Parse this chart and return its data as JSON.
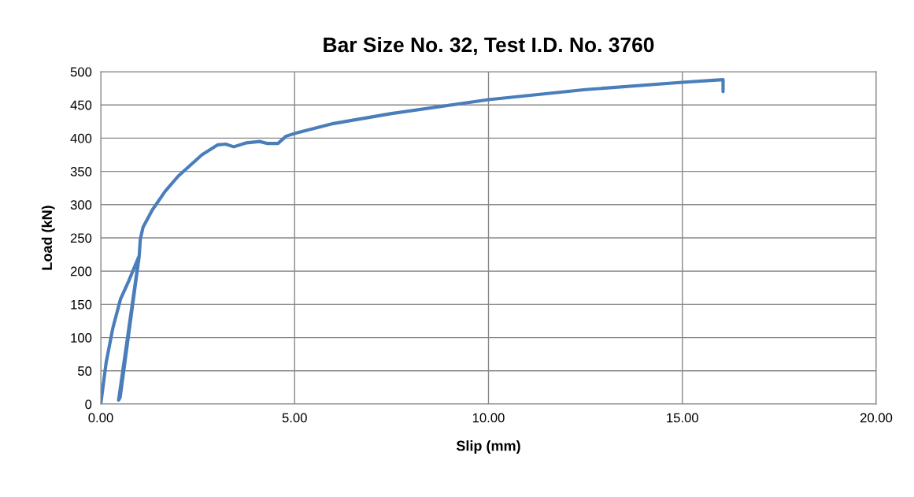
{
  "chart_data": {
    "type": "line",
    "title": "Bar Size No. 32, Test I.D. No. 3760",
    "xlabel": "Slip (mm)",
    "ylabel": "Load (kN)",
    "series": [
      {
        "color": "#4a7ebb",
        "x": [
          0,
          0.14,
          0.31,
          0.51,
          0.72,
          0.99,
          0.46,
          0.5,
          0.99,
          1.02,
          1.09,
          1.33,
          1.66,
          2.0,
          2.61,
          3.02,
          3.22,
          3.43,
          3.76,
          4.1,
          4.3,
          4.57,
          4.78,
          5.05,
          6.0,
          7.5,
          10.0,
          12.5,
          15.0,
          16.05,
          16.05
        ],
        "values": [
          0,
          63,
          114,
          158,
          185,
          223,
          6,
          10,
          222,
          248,
          266,
          292,
          320,
          343,
          375,
          390,
          391,
          387,
          393,
          395,
          392,
          392,
          403,
          408,
          422,
          437,
          458,
          473,
          484,
          488,
          470
        ]
      }
    ],
    "xlim": [
      0,
      20
    ],
    "xticks": [
      {
        "value": 0,
        "label": "0.00"
      },
      {
        "value": 5,
        "label": "5.00"
      },
      {
        "value": 10,
        "label": "10.00"
      },
      {
        "value": 15,
        "label": "15.00"
      },
      {
        "value": 20,
        "label": "20.00"
      }
    ],
    "ylim": [
      0,
      500
    ],
    "yticks": [
      0,
      50,
      100,
      150,
      200,
      250,
      300,
      350,
      400,
      450,
      500
    ],
    "grid": true,
    "marker": "none",
    "line_style": "solid"
  }
}
